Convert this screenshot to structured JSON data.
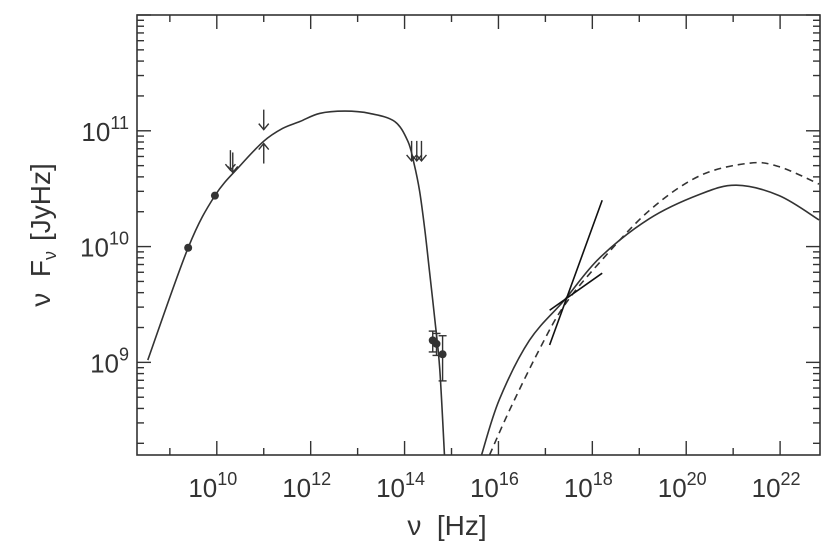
{
  "chart_data": {
    "type": "scatter",
    "xlabel": "ν  [Hz]",
    "ylabel": "ν  F",
    "ylabel_sub": "ν",
    "ylabel_unit": "[JyHz]",
    "x_scale": "log",
    "y_scale": "log",
    "xlim_log10": [
      8.3,
      22.85
    ],
    "ylim_log10": [
      8.2,
      12.0
    ],
    "grid": false,
    "x_ticks": [
      {
        "base": "10",
        "exp": "10",
        "log10": 10
      },
      {
        "base": "10",
        "exp": "12",
        "log10": 12
      },
      {
        "base": "10",
        "exp": "14",
        "log10": 14
      },
      {
        "base": "10",
        "exp": "16",
        "log10": 16
      },
      {
        "base": "10",
        "exp": "18",
        "log10": 18
      },
      {
        "base": "10",
        "exp": "20",
        "log10": 20
      },
      {
        "base": "10",
        "exp": "22",
        "log10": 22
      }
    ],
    "y_ticks": [
      {
        "base": "10",
        "exp": "9",
        "log10": 9
      },
      {
        "base": "10",
        "exp": "10",
        "log10": 10
      },
      {
        "base": "10",
        "exp": "11",
        "log10": 11
      }
    ],
    "series": [
      {
        "kind": "curve",
        "style": "solid",
        "note_log10": true,
        "x": [
          8.53,
          9.39,
          9.96,
          10.5,
          11.0,
          11.4,
          11.77,
          12.19,
          12.73,
          13.26,
          13.79,
          14.07,
          14.2,
          14.32,
          14.43,
          14.53,
          14.65,
          14.75,
          14.85
        ],
        "y": [
          9.02,
          9.99,
          10.44,
          10.7,
          10.91,
          11.02,
          11.08,
          11.15,
          11.17,
          11.15,
          11.08,
          10.91,
          10.72,
          10.48,
          10.15,
          9.79,
          9.35,
          8.94,
          8.2
        ]
      },
      {
        "kind": "curve",
        "style": "solid",
        "x": [
          15.64,
          16.02,
          16.66,
          17.41,
          18.15,
          19.21,
          20.28,
          21.07,
          21.98,
          22.83
        ],
        "y": [
          8.2,
          8.68,
          9.19,
          9.54,
          9.9,
          10.24,
          10.45,
          10.53,
          10.44,
          10.23
        ]
      },
      {
        "kind": "curve",
        "style": "dashed",
        "x": [
          15.81,
          16.24,
          16.87,
          17.4,
          18.15,
          19.21,
          20.28,
          21.34,
          21.98,
          22.83
        ],
        "y": [
          8.2,
          8.59,
          9.11,
          9.49,
          9.86,
          10.31,
          10.61,
          10.72,
          10.69,
          10.54
        ]
      }
    ],
    "points": [
      {
        "x": 9.39,
        "y": 9.99
      },
      {
        "x": 9.96,
        "y": 10.44
      },
      {
        "x": 14.6,
        "y": 9.19,
        "ylo": 9.09,
        "yhi": 9.27
      },
      {
        "x": 14.68,
        "y": 9.16,
        "ylo": 9.06,
        "yhi": 9.25
      },
      {
        "x": 14.81,
        "y": 9.07,
        "ylo": 8.84,
        "yhi": 9.23
      }
    ],
    "upper_limits": [
      {
        "x": 10.29,
        "y": 10.66
      },
      {
        "x": 10.34,
        "y": 10.64
      },
      {
        "x": 11.0,
        "y": 11.01
      },
      {
        "x": 14.15,
        "y": 10.74
      },
      {
        "x": 14.26,
        "y": 10.74
      },
      {
        "x": 14.36,
        "y": 10.74
      }
    ],
    "lower_limits": [
      {
        "x": 11.0,
        "y": 10.89
      }
    ],
    "xray_bowtie": [
      {
        "x": [
          17.09,
          18.21
        ],
        "y": [
          9.15,
          10.4
        ]
      },
      {
        "x": [
          17.09,
          18.21
        ],
        "y": [
          9.45,
          9.77
        ]
      }
    ],
    "colors": {
      "line": "#333333",
      "background": "#ffffff"
    }
  }
}
